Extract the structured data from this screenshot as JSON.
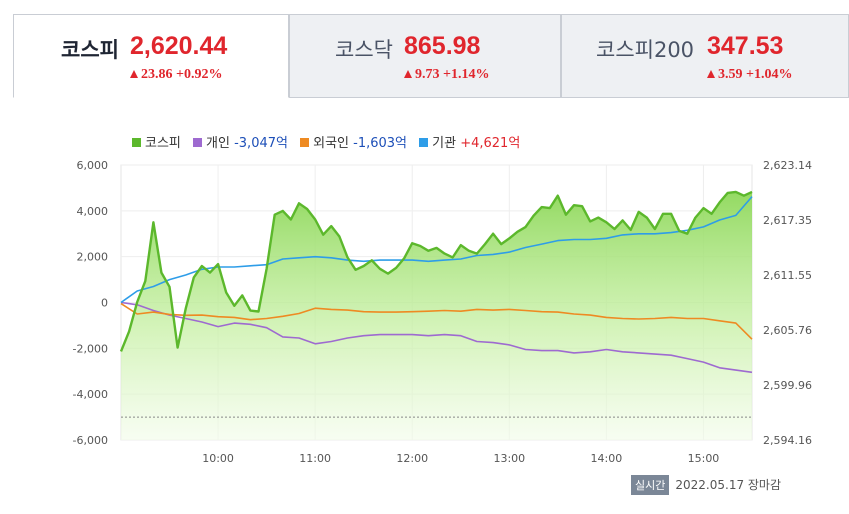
{
  "tabs": [
    {
      "name": "코스피",
      "value": "2,620.44",
      "change": "23.86 +0.92%"
    },
    {
      "name": "코스닥",
      "value": "865.98",
      "change": "9.73 +1.14%"
    },
    {
      "name": "코스피200",
      "value": "347.53",
      "change": "3.59 +1.04%"
    }
  ],
  "legend": [
    {
      "label": "코스피",
      "value": "",
      "color": "#5cb82c"
    },
    {
      "label": "개인",
      "value": "-3,047억",
      "color": "#9e6ad0"
    },
    {
      "label": "외국인",
      "value": "-1,603억",
      "color": "#ee8a22"
    },
    {
      "label": "기관",
      "value": "+4,621억",
      "color": "#2e9de8"
    }
  ],
  "footer": {
    "badge": "실시간",
    "date": "2022.05.17 장마감"
  },
  "chart_data": {
    "type": "line",
    "x_ticks": [
      "10:00",
      "11:00",
      "12:00",
      "13:00",
      "14:00",
      "15:00"
    ],
    "y_left_ticks": [
      "6,000",
      "4,000",
      "2,000",
      "0",
      "-2,000",
      "-4,000",
      "-6,000"
    ],
    "y_right_ticks": [
      "2,623.14",
      "2,617.35",
      "2,611.55",
      "2,605.76",
      "2,599.96",
      "2,594.16"
    ],
    "ylim_left": [
      -6000,
      6000
    ],
    "ylim_right": [
      2594.16,
      2623.14
    ],
    "x_range": [
      "09:00",
      "15:30"
    ],
    "grid": true,
    "reference_line_left": -5000,
    "series": [
      {
        "name": "코스피",
        "axis": "right",
        "color": "#5cb82c",
        "x": [
          "09:00",
          "09:05",
          "09:10",
          "09:15",
          "09:20",
          "09:25",
          "09:30",
          "09:35",
          "09:40",
          "09:45",
          "09:50",
          "09:55",
          "10:00",
          "10:05",
          "10:10",
          "10:15",
          "10:20",
          "10:25",
          "10:30",
          "10:35",
          "10:40",
          "10:45",
          "10:50",
          "10:55",
          "11:00",
          "11:05",
          "11:10",
          "11:15",
          "11:20",
          "11:25",
          "11:30",
          "11:35",
          "11:40",
          "11:45",
          "11:50",
          "11:55",
          "12:00",
          "12:05",
          "12:10",
          "12:15",
          "12:20",
          "12:25",
          "12:30",
          "12:35",
          "12:40",
          "12:45",
          "12:50",
          "12:55",
          "13:00",
          "13:05",
          "13:10",
          "13:15",
          "13:20",
          "13:25",
          "13:30",
          "13:35",
          "13:40",
          "13:45",
          "13:50",
          "13:55",
          "14:00",
          "14:05",
          "14:10",
          "14:15",
          "14:20",
          "14:25",
          "14:30",
          "14:35",
          "14:40",
          "14:45",
          "14:50",
          "14:55",
          "15:00",
          "15:05",
          "15:10",
          "15:15",
          "15:20",
          "15:25",
          "15:30"
        ],
        "y": [
          2603.5,
          2605.6,
          2608.7,
          2610.9,
          2617.1,
          2611.8,
          2610.3,
          2603.9,
          2608.0,
          2611.3,
          2612.5,
          2611.8,
          2612.7,
          2609.7,
          2608.3,
          2609.4,
          2607.8,
          2607.7,
          2612.2,
          2617.9,
          2618.3,
          2617.4,
          2619.1,
          2618.5,
          2617.4,
          2615.8,
          2616.7,
          2615.6,
          2613.4,
          2612.1,
          2612.5,
          2613.1,
          2612.2,
          2611.7,
          2612.3,
          2613.3,
          2614.9,
          2614.6,
          2614.1,
          2614.4,
          2613.8,
          2613.4,
          2614.7,
          2614.1,
          2613.8,
          2614.8,
          2615.9,
          2614.8,
          2615.4,
          2616.1,
          2616.6,
          2617.8,
          2618.7,
          2618.6,
          2619.9,
          2617.9,
          2618.9,
          2618.8,
          2617.2,
          2617.6,
          2617.1,
          2616.4,
          2617.3,
          2616.3,
          2618.2,
          2617.6,
          2616.4,
          2618.0,
          2618.0,
          2616.2,
          2615.9,
          2617.6,
          2618.6,
          2618.0,
          2619.2,
          2620.2,
          2620.3,
          2619.9,
          2620.3
        ]
      },
      {
        "name": "개인",
        "axis": "left",
        "color": "#9e6ad0",
        "x": [
          "09:00",
          "09:10",
          "09:20",
          "09:30",
          "09:40",
          "09:50",
          "10:00",
          "10:10",
          "10:20",
          "10:30",
          "10:40",
          "10:50",
          "11:00",
          "11:10",
          "11:20",
          "11:30",
          "11:40",
          "11:50",
          "12:00",
          "12:10",
          "12:20",
          "12:30",
          "12:40",
          "12:50",
          "13:00",
          "13:10",
          "13:20",
          "13:30",
          "13:40",
          "13:50",
          "14:00",
          "14:10",
          "14:20",
          "14:30",
          "14:40",
          "14:50",
          "15:00",
          "15:10",
          "15:20",
          "15:30"
        ],
        "y": [
          0,
          -100,
          -350,
          -550,
          -700,
          -850,
          -1050,
          -900,
          -950,
          -1100,
          -1500,
          -1550,
          -1800,
          -1700,
          -1550,
          -1450,
          -1400,
          -1400,
          -1400,
          -1450,
          -1400,
          -1450,
          -1700,
          -1750,
          -1850,
          -2050,
          -2100,
          -2100,
          -2200,
          -2150,
          -2050,
          -2150,
          -2200,
          -2250,
          -2300,
          -2450,
          -2600,
          -2850,
          -2950,
          -3047
        ]
      },
      {
        "name": "외국인",
        "axis": "left",
        "color": "#ee8a22",
        "x": [
          "09:00",
          "09:10",
          "09:20",
          "09:30",
          "09:40",
          "09:50",
          "10:00",
          "10:10",
          "10:20",
          "10:30",
          "10:40",
          "10:50",
          "11:00",
          "11:10",
          "11:20",
          "11:30",
          "11:40",
          "11:50",
          "12:00",
          "12:10",
          "12:20",
          "12:30",
          "12:40",
          "12:50",
          "13:00",
          "13:10",
          "13:20",
          "13:30",
          "13:40",
          "13:50",
          "14:00",
          "14:10",
          "14:20",
          "14:30",
          "14:40",
          "14:50",
          "15:00",
          "15:10",
          "15:20",
          "15:30"
        ],
        "y": [
          -50,
          -500,
          -420,
          -520,
          -560,
          -550,
          -620,
          -650,
          -750,
          -700,
          -600,
          -480,
          -250,
          -300,
          -330,
          -400,
          -420,
          -420,
          -400,
          -380,
          -350,
          -380,
          -300,
          -330,
          -300,
          -350,
          -400,
          -420,
          -500,
          -550,
          -650,
          -700,
          -720,
          -700,
          -650,
          -700,
          -700,
          -800,
          -900,
          -1603
        ]
      },
      {
        "name": "기관",
        "axis": "left",
        "color": "#2e9de8",
        "x": [
          "09:00",
          "09:10",
          "09:20",
          "09:30",
          "09:40",
          "09:50",
          "10:00",
          "10:10",
          "10:20",
          "10:30",
          "10:40",
          "10:50",
          "11:00",
          "11:10",
          "11:20",
          "11:30",
          "11:40",
          "11:50",
          "12:00",
          "12:10",
          "12:20",
          "12:30",
          "12:40",
          "12:50",
          "13:00",
          "13:10",
          "13:20",
          "13:30",
          "13:40",
          "13:50",
          "14:00",
          "14:10",
          "14:20",
          "14:30",
          "14:40",
          "14:50",
          "15:00",
          "15:10",
          "15:20",
          "15:30"
        ],
        "y": [
          0,
          500,
          700,
          1000,
          1200,
          1450,
          1550,
          1550,
          1600,
          1650,
          1900,
          1950,
          2000,
          1950,
          1850,
          1800,
          1850,
          1850,
          1850,
          1800,
          1850,
          1900,
          2050,
          2100,
          2200,
          2400,
          2550,
          2700,
          2750,
          2750,
          2800,
          2950,
          3000,
          3000,
          3050,
          3150,
          3300,
          3600,
          3800,
          4621
        ]
      }
    ]
  }
}
